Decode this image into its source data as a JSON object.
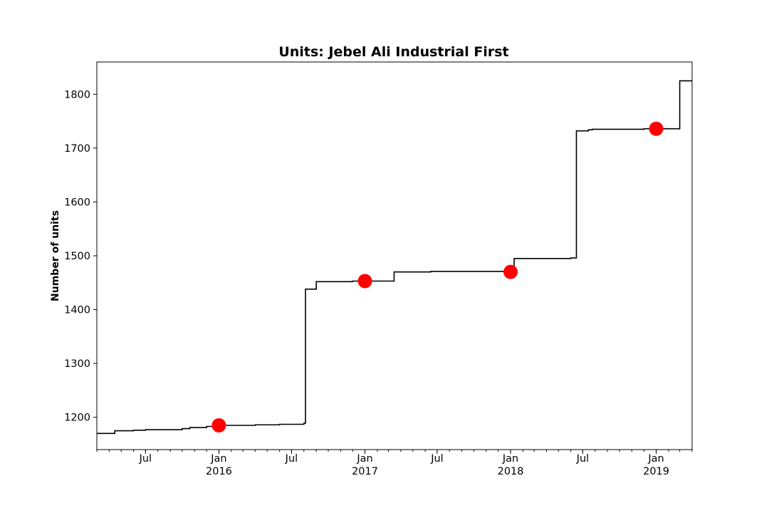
{
  "chart_data": {
    "type": "line",
    "title": "Units: Jebel Ali Industrial First",
    "xlabel": "",
    "ylabel": "Number of units",
    "xlim": [
      "2015-03-01",
      "2019-04-01"
    ],
    "ylim": [
      1140,
      1860
    ],
    "grid": false,
    "legend": "none",
    "y_ticks": [
      1200,
      1300,
      1400,
      1500,
      1600,
      1700,
      1800
    ],
    "x_ticks": [
      {
        "date": "2015-07-01",
        "label": "Jul",
        "sublabel": ""
      },
      {
        "date": "2016-01-01",
        "label": "Jan",
        "sublabel": "2016"
      },
      {
        "date": "2016-07-01",
        "label": "Jul",
        "sublabel": ""
      },
      {
        "date": "2017-01-01",
        "label": "Jan",
        "sublabel": "2017"
      },
      {
        "date": "2017-07-01",
        "label": "Jul",
        "sublabel": ""
      },
      {
        "date": "2018-01-01",
        "label": "Jan",
        "sublabel": "2018"
      },
      {
        "date": "2018-07-01",
        "label": "Jul",
        "sublabel": ""
      },
      {
        "date": "2019-01-01",
        "label": "Jan",
        "sublabel": "2019"
      }
    ],
    "series": [
      {
        "style": "step",
        "color": "#000000",
        "points": [
          [
            "2015-03-01",
            1170
          ],
          [
            "2015-04-15",
            1175
          ],
          [
            "2015-06-01",
            1176
          ],
          [
            "2015-07-01",
            1177
          ],
          [
            "2015-10-01",
            1179
          ],
          [
            "2015-10-20",
            1181
          ],
          [
            "2015-12-01",
            1183
          ],
          [
            "2016-01-15",
            1185
          ],
          [
            "2016-04-01",
            1186
          ],
          [
            "2016-06-01",
            1187
          ],
          [
            "2016-08-01",
            1189
          ],
          [
            "2016-08-05",
            1438
          ],
          [
            "2016-09-01",
            1452
          ],
          [
            "2016-12-01",
            1453
          ],
          [
            "2017-03-15",
            1470
          ],
          [
            "2017-06-15",
            1471
          ],
          [
            "2018-01-10",
            1495
          ],
          [
            "2018-06-01",
            1496
          ],
          [
            "2018-06-15",
            1732
          ],
          [
            "2018-07-15",
            1734
          ],
          [
            "2018-07-25",
            1735
          ],
          [
            "2018-12-01",
            1736
          ],
          [
            "2019-03-01",
            1825
          ],
          [
            "2019-04-01",
            1825
          ]
        ]
      },
      {
        "style": "markers",
        "color": "#ff0000",
        "points": [
          [
            "2016-01-01",
            1185
          ],
          [
            "2017-01-01",
            1453
          ],
          [
            "2018-01-01",
            1470
          ],
          [
            "2019-01-01",
            1736
          ]
        ]
      }
    ]
  }
}
